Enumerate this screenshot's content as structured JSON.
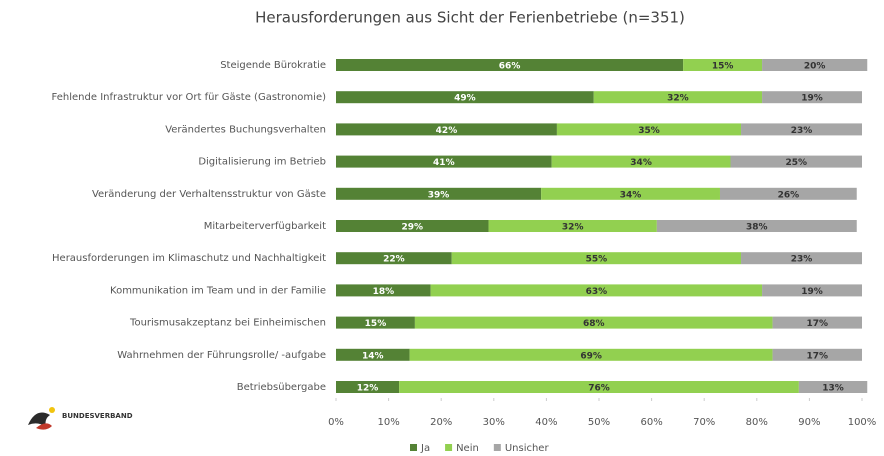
{
  "chart_data": {
    "type": "stacked_bar_horizontal",
    "title": "Herausforderungen aus Sicht der Ferienbetriebe (n=351)",
    "categories": [
      "Steigende Bürokratie",
      "Fehlende Infrastruktur vor Ort für Gäste (Gastronomie)",
      "Verändertes Buchungsverhalten",
      "Digitalisierung im Betrieb",
      "Veränderung der Verhaltensstruktur von Gäste",
      "Mitarbeiterverfügbarkeit",
      "Herausforderungen im Klimaschutz und Nachhaltigkeit",
      "Kommunikation im Team und in der Familie",
      "Tourismusakzeptanz bei Einheimischen",
      "Wahrnehmen der Führungsrolle/ -aufgabe",
      "Betriebsübergabe"
    ],
    "series": [
      {
        "name": "Ja",
        "color": "#548235",
        "values": [
          66,
          49,
          42,
          41,
          39,
          29,
          22,
          18,
          15,
          14,
          12
        ],
        "value_labels": [
          "66%",
          "49%",
          "42%",
          "41%",
          "39%",
          "29%",
          "22%",
          "18%",
          "15%",
          "14%",
          "12%"
        ]
      },
      {
        "name": "Nein",
        "color": "#92d050",
        "values": [
          15,
          32,
          35,
          34,
          34,
          32,
          55,
          63,
          68,
          69,
          76
        ],
        "value_labels": [
          "15%",
          "32%",
          "35%",
          "34%",
          "34%",
          "32%",
          "55%",
          "63%",
          "68%",
          "69%",
          "76%"
        ]
      },
      {
        "name": "Unsicher",
        "color": "#a6a6a6",
        "values": [
          20,
          19,
          23,
          25,
          26,
          38,
          23,
          19,
          17,
          17,
          13
        ],
        "value_labels": [
          "20%",
          "19%",
          "23%",
          "25%",
          "26%",
          "38%",
          "23%",
          "19%",
          "17%",
          "17%",
          "13%"
        ]
      }
    ],
    "xlim": [
      0,
      100
    ],
    "xticks": [
      {
        "value": 0,
        "label": "0%"
      },
      {
        "value": 10,
        "label": "10%"
      },
      {
        "value": 20,
        "label": "20%"
      },
      {
        "value": 30,
        "label": "30%"
      },
      {
        "value": 40,
        "label": "40%"
      },
      {
        "value": 50,
        "label": "50%"
      },
      {
        "value": 60,
        "label": "60%"
      },
      {
        "value": 70,
        "label": "70%"
      },
      {
        "value": 80,
        "label": "80%"
      },
      {
        "value": 90,
        "label": "90%"
      },
      {
        "value": 100,
        "label": "100%"
      }
    ],
    "legend": "bottom",
    "logo": "BUNDESVERBAND"
  }
}
